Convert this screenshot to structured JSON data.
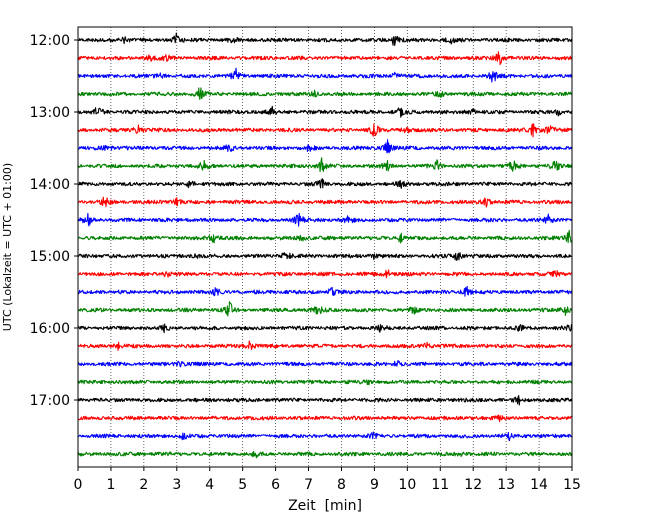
{
  "chart_data": {
    "type": "line",
    "title": "",
    "xlabel": "Zeit  [min]",
    "ylabel": "UTC (Lokalzeit = UTC + 01:00)",
    "xlim": [
      0,
      15
    ],
    "x_ticks": [
      0,
      1,
      2,
      3,
      4,
      5,
      6,
      7,
      8,
      9,
      10,
      11,
      12,
      13,
      14,
      15
    ],
    "y_tick_labels": [
      "12:00",
      "13:00",
      "14:00",
      "15:00",
      "16:00",
      "17:00"
    ],
    "grid": "vertical dotted lines at each minute",
    "trace_colors": [
      "#000000",
      "#ff0000",
      "#0000ff",
      "#008000"
    ],
    "traces": [
      {
        "start": "12:00",
        "events": [
          [
            3.0,
            7
          ],
          [
            9.6,
            7
          ],
          [
            11.3,
            4
          ],
          [
            4.7,
            3
          ],
          [
            1.4,
            3
          ]
        ]
      },
      {
        "start": "12:15",
        "events": [
          [
            2.2,
            4
          ],
          [
            12.8,
            7
          ],
          [
            2.7,
            3
          ]
        ]
      },
      {
        "start": "12:30",
        "events": [
          [
            4.8,
            6
          ],
          [
            12.6,
            7
          ],
          [
            9.6,
            3
          ],
          [
            2.5,
            3
          ]
        ]
      },
      {
        "start": "12:45",
        "events": [
          [
            3.7,
            8
          ],
          [
            7.2,
            3
          ],
          [
            11.0,
            3
          ]
        ]
      },
      {
        "start": "13:00",
        "events": [
          [
            0.6,
            6
          ],
          [
            5.9,
            4
          ],
          [
            9.8,
            5
          ],
          [
            12.0,
            3
          ],
          [
            14.6,
            3
          ]
        ]
      },
      {
        "start": "13:15",
        "events": [
          [
            1.8,
            6
          ],
          [
            9.0,
            7
          ],
          [
            10.0,
            4
          ],
          [
            13.8,
            7
          ],
          [
            14.3,
            6
          ]
        ]
      },
      {
        "start": "13:30",
        "events": [
          [
            0.9,
            4
          ],
          [
            9.4,
            7
          ],
          [
            4.6,
            4
          ],
          [
            7.0,
            3
          ]
        ]
      },
      {
        "start": "13:45",
        "events": [
          [
            3.8,
            6
          ],
          [
            7.4,
            8
          ],
          [
            9.4,
            6
          ],
          [
            10.9,
            5
          ],
          [
            13.2,
            6
          ],
          [
            14.5,
            7
          ]
        ]
      },
      {
        "start": "14:00",
        "events": [
          [
            3.4,
            4
          ],
          [
            7.4,
            5
          ],
          [
            9.8,
            3
          ]
        ]
      },
      {
        "start": "14:15",
        "events": [
          [
            0.8,
            6
          ],
          [
            12.4,
            5
          ],
          [
            3.0,
            3
          ]
        ]
      },
      {
        "start": "14:30",
        "events": [
          [
            0.3,
            7
          ],
          [
            6.7,
            7
          ],
          [
            14.3,
            6
          ],
          [
            8.2,
            4
          ]
        ]
      },
      {
        "start": "14:45",
        "events": [
          [
            4.1,
            6
          ],
          [
            9.8,
            5
          ],
          [
            14.9,
            8
          ],
          [
            6.8,
            3
          ]
        ]
      },
      {
        "start": "15:00",
        "events": [
          [
            6.3,
            6
          ],
          [
            11.5,
            8
          ],
          [
            3.6,
            3
          ],
          [
            9.0,
            3
          ]
        ]
      },
      {
        "start": "15:15",
        "events": [
          [
            2.7,
            3
          ],
          [
            9.4,
            4
          ],
          [
            14.5,
            3
          ]
        ]
      },
      {
        "start": "15:30",
        "events": [
          [
            4.2,
            4
          ],
          [
            7.7,
            4
          ],
          [
            11.8,
            5
          ]
        ]
      },
      {
        "start": "15:45",
        "events": [
          [
            4.6,
            8
          ],
          [
            7.3,
            5
          ],
          [
            10.2,
            3
          ],
          [
            14.8,
            5
          ]
        ]
      },
      {
        "start": "16:00",
        "events": [
          [
            2.6,
            4
          ],
          [
            9.2,
            4
          ],
          [
            13.4,
            3
          ],
          [
            14.9,
            4
          ]
        ]
      },
      {
        "start": "16:15",
        "events": [
          [
            1.2,
            4
          ],
          [
            5.2,
            6
          ],
          [
            10.6,
            3
          ]
        ]
      },
      {
        "start": "16:30",
        "events": [
          [
            3.1,
            3
          ],
          [
            9.7,
            3
          ]
        ]
      },
      {
        "start": "16:45",
        "events": [
          [
            8.8,
            2
          ]
        ]
      },
      {
        "start": "17:00",
        "events": [
          [
            13.4,
            4
          ]
        ]
      },
      {
        "start": "17:15",
        "events": [
          [
            12.8,
            2
          ]
        ]
      },
      {
        "start": "17:30",
        "events": [
          [
            3.2,
            3
          ],
          [
            9.0,
            4
          ],
          [
            13.1,
            3
          ]
        ]
      },
      {
        "start": "17:45",
        "events": [
          [
            5.4,
            3
          ],
          [
            11.6,
            2
          ]
        ]
      }
    ]
  }
}
